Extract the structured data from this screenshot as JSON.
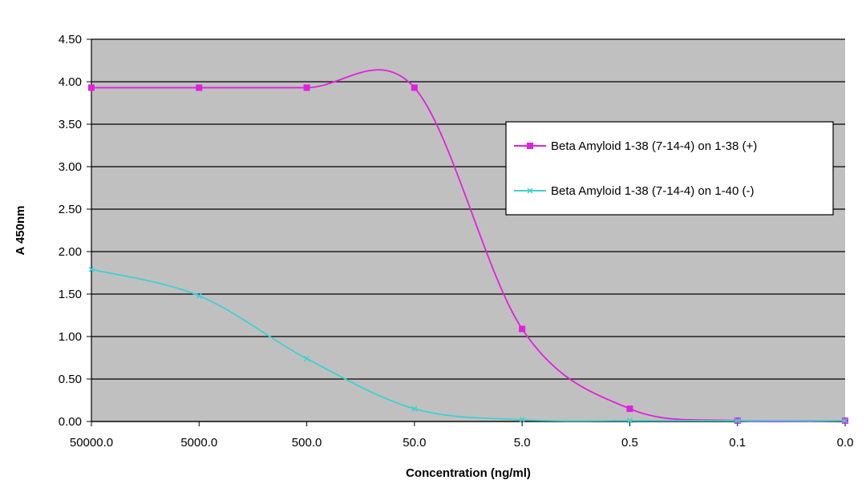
{
  "chart_data": {
    "type": "line",
    "title": "",
    "xlabel": "Concentration (ng/ml)",
    "ylabel": "A 450nm",
    "categories": [
      "50000.0",
      "5000.0",
      "500.0",
      "50.0",
      "5.0",
      "0.5",
      "0.1",
      "0.0"
    ],
    "ylim": [
      0,
      4.5
    ],
    "ytick_step": 0.5,
    "yticks": [
      "0.00",
      "0.50",
      "1.00",
      "1.50",
      "2.00",
      "2.50",
      "3.00",
      "3.50",
      "4.00",
      "4.50"
    ],
    "grid": true,
    "legend_position": "right",
    "series": [
      {
        "name": "Beta Amyloid 1-38 (7-14-4) on 1-38 (+)",
        "color": "#e020e0",
        "marker": "square",
        "values": [
          3.93,
          3.93,
          3.93,
          3.93,
          1.09,
          0.15,
          0.01,
          0.01
        ]
      },
      {
        "name": "Beta Amyloid 1-38 (7-14-4) on 1-40 (-)",
        "color": "#40d0d0",
        "marker": "x",
        "values": [
          1.79,
          1.48,
          0.74,
          0.15,
          0.02,
          0.01,
          0.01,
          0.01
        ]
      }
    ],
    "colors": {
      "plot_background": "#c0c0c0",
      "gridline": "#000000"
    }
  }
}
